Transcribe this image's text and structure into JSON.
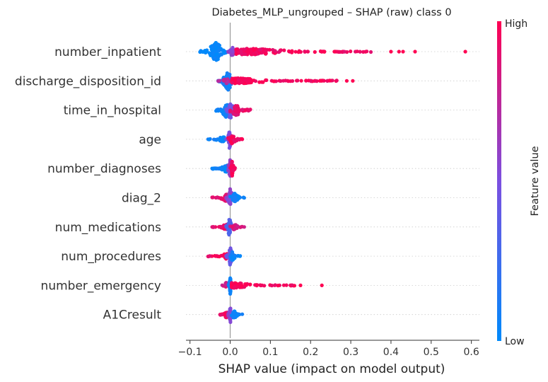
{
  "chart_data": {
    "type": "scatter",
    "subtype": "shap-beeswarm",
    "title": "Diabetes_MLP_ungrouped – SHAP (raw) class 0",
    "xlabel": "SHAP value (impact on model output)",
    "xlim": [
      -0.11,
      0.62
    ],
    "xticks": [
      -0.1,
      0.0,
      0.1,
      0.2,
      0.3,
      0.4,
      0.5,
      0.6
    ],
    "xtick_labels": [
      "−0.1",
      "0.0",
      "0.1",
      "0.2",
      "0.3",
      "0.4",
      "0.5",
      "0.6"
    ],
    "grid": false,
    "colorbar": {
      "title": "Feature value",
      "high_label": "High",
      "low_label": "Low",
      "high_color": "#ff0052",
      "mid_color": "#7b4fe0",
      "low_color": "#008afb"
    },
    "features": [
      {
        "name": "number_inpatient",
        "clusters": [
          {
            "lo": -0.075,
            "hi": -0.01,
            "c": 0.02,
            "n": 120,
            "w": 1.0,
            "peak": -0.035
          },
          {
            "lo": -0.005,
            "hi": 0.015,
            "c": 0.55,
            "n": 30,
            "w": 0.5,
            "peak": 0.005
          },
          {
            "lo": 0.015,
            "hi": 0.35,
            "c": 0.95,
            "n": 170,
            "w": 0.35,
            "peak": 0.05
          }
        ],
        "outliers": [
          [
            0.4,
            1
          ],
          [
            0.42,
            1
          ],
          [
            0.43,
            1
          ],
          [
            0.46,
            1
          ],
          [
            0.585,
            1
          ]
        ]
      },
      {
        "name": "discharge_disposition_id",
        "clusters": [
          {
            "lo": -0.03,
            "hi": 0.01,
            "c": 0.1,
            "n": 80,
            "w": 1.0,
            "peak": -0.005
          },
          {
            "lo": -0.03,
            "hi": 0.0,
            "c": 0.75,
            "n": 20,
            "w": 0.3,
            "peak": -0.01
          },
          {
            "lo": 0.005,
            "hi": 0.265,
            "c": 0.97,
            "n": 150,
            "w": 0.3,
            "peak": 0.02
          }
        ],
        "outliers": [
          [
            0.29,
            1
          ],
          [
            0.305,
            1
          ]
        ]
      },
      {
        "name": "time_in_hospital",
        "clusters": [
          {
            "lo": -0.035,
            "hi": 0.0,
            "c": 0.08,
            "n": 60,
            "w": 0.8,
            "peak": -0.01
          },
          {
            "lo": -0.01,
            "hi": 0.015,
            "c": 0.45,
            "n": 50,
            "w": 1.0,
            "peak": 0.0
          },
          {
            "lo": 0.0,
            "hi": 0.05,
            "c": 0.92,
            "n": 60,
            "w": 0.6,
            "peak": 0.015
          }
        ],
        "outliers": []
      },
      {
        "name": "age",
        "clusters": [
          {
            "lo": -0.055,
            "hi": -0.01,
            "c": 0.05,
            "n": 40,
            "w": 0.3,
            "peak": -0.02
          },
          {
            "lo": -0.01,
            "hi": 0.005,
            "c": 0.5,
            "n": 50,
            "w": 1.0,
            "peak": -0.002
          },
          {
            "lo": -0.005,
            "hi": 0.03,
            "c": 0.95,
            "n": 40,
            "w": 0.5,
            "peak": 0.005
          }
        ],
        "outliers": []
      },
      {
        "name": "number_diagnoses",
        "clusters": [
          {
            "lo": -0.045,
            "hi": -0.005,
            "c": 0.05,
            "n": 50,
            "w": 0.4,
            "peak": -0.01
          },
          {
            "lo": -0.005,
            "hi": 0.01,
            "c": 0.6,
            "n": 50,
            "w": 1.0,
            "peak": 0.0
          },
          {
            "lo": 0.0,
            "hi": 0.012,
            "c": 0.95,
            "n": 40,
            "w": 0.8,
            "peak": 0.005
          }
        ],
        "outliers": []
      },
      {
        "name": "diag_2",
        "clusters": [
          {
            "lo": -0.045,
            "hi": -0.005,
            "c": 0.92,
            "n": 40,
            "w": 0.4,
            "peak": -0.01
          },
          {
            "lo": -0.01,
            "hi": 0.01,
            "c": 0.55,
            "n": 60,
            "w": 1.0,
            "peak": 0.0
          },
          {
            "lo": 0.0,
            "hi": 0.035,
            "c": 0.05,
            "n": 40,
            "w": 0.5,
            "peak": 0.01
          }
        ],
        "outliers": []
      },
      {
        "name": "num_medications",
        "clusters": [
          {
            "lo": -0.045,
            "hi": -0.005,
            "c": 0.9,
            "n": 40,
            "w": 0.3,
            "peak": -0.01
          },
          {
            "lo": -0.01,
            "hi": 0.005,
            "c": 0.3,
            "n": 60,
            "w": 1.0,
            "peak": -0.002
          },
          {
            "lo": 0.0,
            "hi": 0.035,
            "c": 0.85,
            "n": 30,
            "w": 0.3,
            "peak": 0.01
          }
        ],
        "outliers": []
      },
      {
        "name": "num_procedures",
        "clusters": [
          {
            "lo": -0.055,
            "hi": -0.005,
            "c": 0.95,
            "n": 40,
            "w": 0.3,
            "peak": -0.01
          },
          {
            "lo": -0.01,
            "hi": 0.005,
            "c": 0.45,
            "n": 50,
            "w": 1.0,
            "peak": 0.0
          },
          {
            "lo": 0.0,
            "hi": 0.025,
            "c": 0.05,
            "n": 30,
            "w": 0.5,
            "peak": 0.005
          }
        ],
        "outliers": []
      },
      {
        "name": "number_emergency",
        "clusters": [
          {
            "lo": -0.02,
            "hi": 0.0,
            "c": 0.8,
            "n": 15,
            "w": 0.3,
            "peak": -0.01
          },
          {
            "lo": -0.004,
            "hi": 0.004,
            "c": 0.03,
            "n": 60,
            "w": 1.0,
            "peak": 0.0
          },
          {
            "lo": 0.004,
            "hi": 0.16,
            "c": 0.97,
            "n": 90,
            "w": 0.3,
            "peak": 0.01
          }
        ],
        "outliers": [
          [
            0.175,
            1
          ],
          [
            0.228,
            1
          ]
        ]
      },
      {
        "name": "A1Cresult",
        "clusters": [
          {
            "lo": -0.025,
            "hi": -0.005,
            "c": 0.95,
            "n": 30,
            "w": 0.4,
            "peak": -0.01
          },
          {
            "lo": -0.005,
            "hi": 0.005,
            "c": 0.55,
            "n": 40,
            "w": 1.0,
            "peak": 0.0
          },
          {
            "lo": 0.003,
            "hi": 0.03,
            "c": 0.05,
            "n": 25,
            "w": 0.4,
            "peak": 0.01
          }
        ],
        "outliers": []
      }
    ]
  }
}
